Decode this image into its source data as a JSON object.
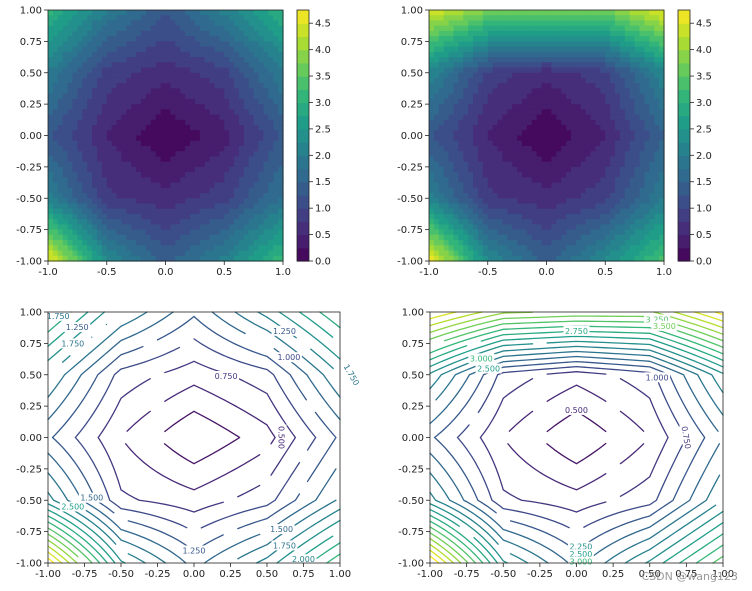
{
  "colors": {
    "viridis": [
      "#440154",
      "#482878",
      "#3e4a89",
      "#31688e",
      "#26828e",
      "#1f9e89",
      "#35b779",
      "#6ece58",
      "#b5de2b",
      "#fde725"
    ]
  },
  "watermark": "CSDN @wang123",
  "chart_data": [
    {
      "type": "contourf",
      "grid": {
        "x": [
          -1,
          -0.5,
          0,
          0.5,
          1
        ],
        "y": [
          -1,
          -0.5,
          0,
          0.5,
          1
        ]
      },
      "values": [
        [
          4.7,
          2.3,
          1.4,
          2.1,
          3.2
        ],
        [
          2.1,
          0.8,
          0.6,
          0.9,
          1.8
        ],
        [
          1.3,
          0.5,
          0.0,
          0.4,
          1.3
        ],
        [
          2.0,
          0.9,
          0.6,
          0.9,
          2.0
        ],
        [
          3.1,
          2.0,
          1.3,
          2.1,
          3.0
        ]
      ],
      "xlim": [
        -1,
        1
      ],
      "ylim": [
        -1,
        1
      ],
      "xticks": [
        "-1.0",
        "-0.5",
        "0.0",
        "0.5",
        "1.0"
      ],
      "yticks": [
        "-1.00",
        "-0.75",
        "-0.50",
        "-0.25",
        "0.00",
        "0.25",
        "0.50",
        "0.75",
        "1.00"
      ],
      "colorbar": {
        "range": [
          0,
          4.75
        ],
        "ticks": [
          "0.0",
          "0.5",
          "1.0",
          "1.5",
          "2.0",
          "2.5",
          "3.0",
          "3.5",
          "4.0",
          "4.5"
        ]
      }
    },
    {
      "type": "contourf",
      "grid": {
        "x": [
          -1,
          -0.5,
          0,
          0.5,
          1
        ],
        "y": [
          -1,
          -0.5,
          0,
          0.5,
          1
        ]
      },
      "values": [
        [
          4.8,
          2.3,
          1.4,
          2.3,
          3.4
        ],
        [
          2.1,
          0.8,
          0.6,
          0.9,
          2.0
        ],
        [
          1.3,
          0.5,
          0.0,
          0.5,
          1.5
        ],
        [
          2.2,
          0.9,
          0.6,
          0.9,
          2.2
        ],
        [
          4.5,
          3.8,
          3.7,
          3.7,
          4.6
        ]
      ],
      "xlim": [
        -1,
        1
      ],
      "ylim": [
        -1,
        1
      ],
      "xticks": [
        "-1.0",
        "-0.5",
        "0.0",
        "0.5",
        "1.0"
      ],
      "yticks": [
        "-1.00",
        "-0.75",
        "-0.50",
        "-0.25",
        "0.00",
        "0.25",
        "0.50",
        "0.75",
        "1.00"
      ],
      "colorbar": {
        "range": [
          0,
          4.75
        ],
        "ticks": [
          "0.0",
          "0.5",
          "1.0",
          "1.5",
          "2.0",
          "2.5",
          "3.0",
          "3.5",
          "4.0",
          "4.5"
        ]
      }
    },
    {
      "type": "contour",
      "grid": {
        "x": [
          -1,
          -0.5,
          0,
          0.5,
          1
        ],
        "y": [
          -1,
          -0.5,
          0,
          0.5,
          1
        ]
      },
      "values": [
        [
          4.7,
          2.3,
          1.4,
          2.1,
          3.2
        ],
        [
          2.1,
          0.8,
          0.6,
          0.9,
          1.8
        ],
        [
          1.3,
          0.5,
          0.0,
          0.4,
          1.3
        ],
        [
          2.0,
          0.9,
          0.6,
          0.9,
          2.0
        ],
        [
          3.1,
          2.0,
          1.3,
          2.1,
          3.0
        ]
      ],
      "levels": [
        0.25,
        0.5,
        0.75,
        1.0,
        1.25,
        1.5,
        1.75,
        2.0,
        2.25,
        2.5,
        2.75,
        3.0,
        3.25,
        3.5,
        3.75,
        4.0,
        4.25,
        4.5
      ],
      "level_labels": [
        {
          "text": "0.750",
          "x": 0.22,
          "y": 0.49
        },
        {
          "text": "0.500",
          "x": 0.6,
          "y": 0.0,
          "rotate": 90
        },
        {
          "text": "1.000",
          "x": 0.65,
          "y": 0.64
        },
        {
          "text": "1.250",
          "x": 0.62,
          "y": 0.85
        },
        {
          "text": "1.750",
          "x": 1.08,
          "y": 0.5,
          "rotate": 60
        },
        {
          "text": "1.750",
          "x": -0.93,
          "y": 0.97
        },
        {
          "text": "1.750",
          "x": -0.83,
          "y": 0.75
        },
        {
          "text": "1.250",
          "x": -0.8,
          "y": 0.88
        },
        {
          "text": "1.500",
          "x": -0.7,
          "y": -0.48
        },
        {
          "text": "2.500",
          "x": -0.83,
          "y": -0.55
        },
        {
          "text": "1.500",
          "x": 0.6,
          "y": -0.73
        },
        {
          "text": "1.750",
          "x": 0.62,
          "y": -0.86
        },
        {
          "text": "1.250",
          "x": 0.0,
          "y": -0.9
        },
        {
          "text": "2.000",
          "x": 0.75,
          "y": -0.97
        }
      ],
      "xlim": [
        -1,
        1
      ],
      "ylim": [
        -1,
        1
      ],
      "xticks": [
        "-1.00",
        "-0.75",
        "-0.50",
        "-0.25",
        "0.00",
        "0.25",
        "0.50",
        "0.75",
        "1.00"
      ],
      "yticks": [
        "-1.00",
        "-0.75",
        "-0.50",
        "-0.25",
        "0.00",
        "0.25",
        "0.50",
        "0.75",
        "1.00"
      ]
    },
    {
      "type": "contour",
      "grid": {
        "x": [
          -1,
          -0.5,
          0,
          0.5,
          1
        ],
        "y": [
          -1,
          -0.5,
          0,
          0.5,
          1
        ]
      },
      "values": [
        [
          4.8,
          2.3,
          1.4,
          2.3,
          3.4
        ],
        [
          2.1,
          0.8,
          0.6,
          0.9,
          2.0
        ],
        [
          1.3,
          0.5,
          0.0,
          0.5,
          1.5
        ],
        [
          2.2,
          0.9,
          0.6,
          0.9,
          2.2
        ],
        [
          4.5,
          3.8,
          3.7,
          3.7,
          4.6
        ]
      ],
      "levels": [
        0.25,
        0.5,
        0.75,
        1.0,
        1.25,
        1.5,
        1.75,
        2.0,
        2.25,
        2.5,
        2.75,
        3.0,
        3.25,
        3.5,
        3.75,
        4.0,
        4.25,
        4.5
      ],
      "level_labels": [
        {
          "text": "0.500",
          "x": 0.0,
          "y": 0.22
        },
        {
          "text": "1.000",
          "x": 0.55,
          "y": 0.48
        },
        {
          "text": "0.750",
          "x": 0.75,
          "y": 0.0,
          "rotate": 80
        },
        {
          "text": "2.250",
          "x": 0.03,
          "y": -0.87
        },
        {
          "text": "2.500",
          "x": 0.03,
          "y": -0.93
        },
        {
          "text": "3.000",
          "x": 0.03,
          "y": -0.99
        },
        {
          "text": "2.750",
          "x": 0.0,
          "y": 0.85
        },
        {
          "text": "3.250",
          "x": 0.55,
          "y": 0.94
        },
        {
          "text": "3.500",
          "x": 0.6,
          "y": 0.89
        },
        {
          "text": "3.000",
          "x": -0.65,
          "y": 0.63
        },
        {
          "text": "2.500",
          "x": -0.6,
          "y": 0.55
        }
      ],
      "xlim": [
        -1,
        1
      ],
      "ylim": [
        -1,
        1
      ],
      "xticks": [
        "-1.00",
        "-0.75",
        "-0.50",
        "-0.25",
        "0.00",
        "0.25",
        "0.50",
        "0.75",
        "1.00"
      ],
      "yticks": [
        "-1.00",
        "-0.75",
        "-0.50",
        "-0.25",
        "0.00",
        "0.25",
        "0.50",
        "0.75",
        "1.00"
      ]
    }
  ]
}
